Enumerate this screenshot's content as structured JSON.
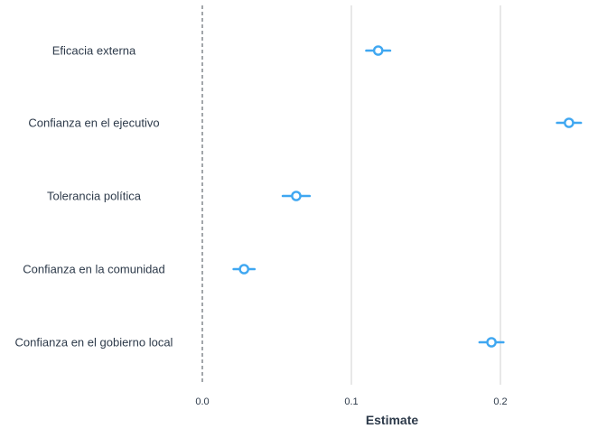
{
  "chart_data": {
    "type": "scatter",
    "subtype": "coefficient-plot",
    "title": "",
    "xlabel": "Estimate",
    "ylabel": "",
    "xlim": [
      -0.0,
      0.26
    ],
    "xticks": [
      0.0,
      0.1,
      0.2
    ],
    "xtick_labels": [
      "0.0",
      "0.1",
      "0.2"
    ],
    "grid": "vertical-major",
    "reference_line": {
      "x": 0.0,
      "style": "dashed"
    },
    "point_color": "#3fa7f1",
    "text_color": "#2d3a4a",
    "categories": [
      "Eficacia externa",
      "Confianza en el ejecutivo",
      "Tolerancia política",
      "Confianza en la comunidad",
      "Confianza en el gobierno local"
    ],
    "series": [
      {
        "estimates": [
          0.118,
          0.246,
          0.063,
          0.028,
          0.194
        ],
        "ci_low": [
          0.11,
          0.238,
          0.054,
          0.021,
          0.186
        ],
        "ci_high": [
          0.126,
          0.254,
          0.072,
          0.035,
          0.202
        ]
      }
    ]
  }
}
